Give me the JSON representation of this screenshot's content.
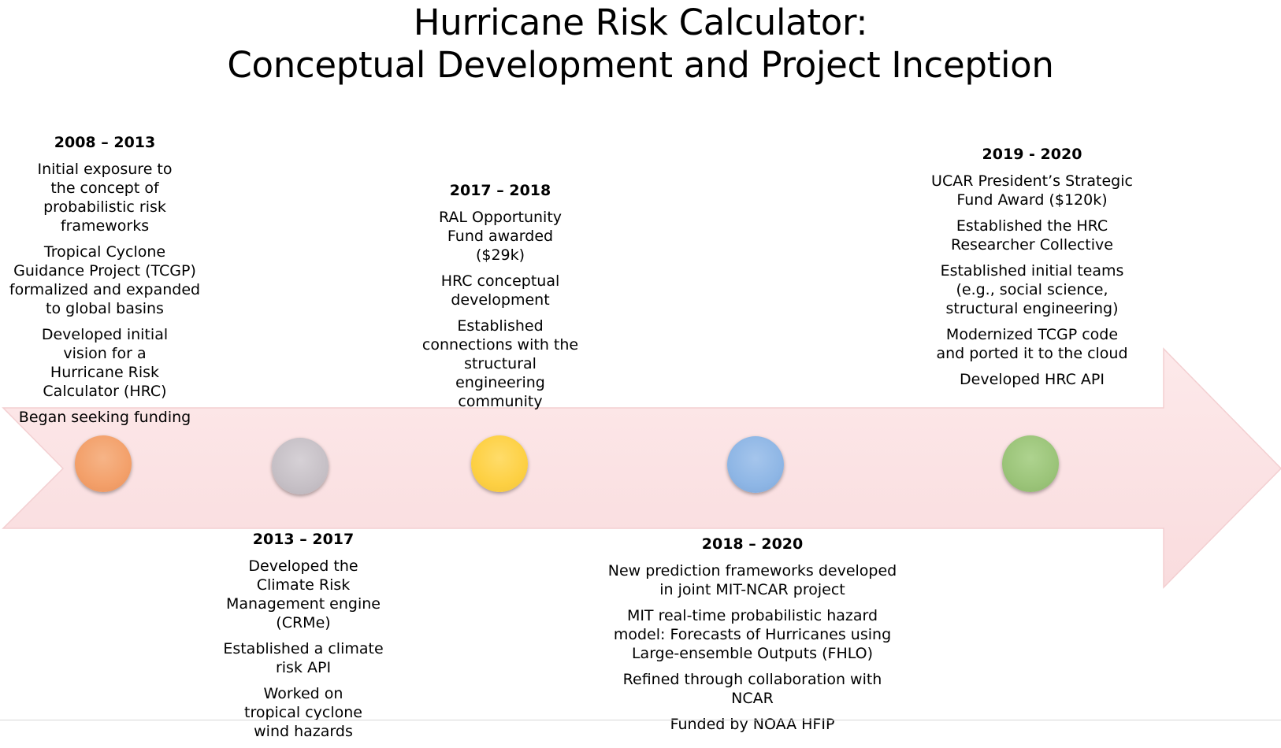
{
  "title": {
    "line1": "Hurricane Risk Calculator:",
    "line2": "Conceptual Development and Project Inception"
  },
  "colors": {
    "arrow_fill": "#fbe3e4",
    "arrow_stroke": "#f3cfd1",
    "dot_orange": "#f4a26e",
    "dot_gray": "#c9c3c9",
    "dot_yellow": "#fdd146",
    "dot_blue": "#8fb7e5",
    "dot_green": "#9cc57a"
  },
  "milestones": [
    {
      "period": "2008 – 2013",
      "items": [
        "Initial exposure to the concept of probabilistic risk frameworks",
        "Tropical Cyclone Guidance Project (TCGP) formalized and expanded to global basins",
        "Developed initial vision for a Hurricane Risk Calculator (HRC)",
        "Began seeking funding"
      ]
    },
    {
      "period": "2013 – 2017",
      "items": [
        "Developed the Climate Risk Management engine (CRMe)",
        "Established a climate risk API",
        "Worked on tropical cyclone wind hazards"
      ]
    },
    {
      "period": "2017 – 2018",
      "items": [
        "RAL Opportunity Fund awarded ($29k)",
        "HRC conceptual development",
        "Established connections with the structural engineering community"
      ]
    },
    {
      "period": "2018 – 2020",
      "items": [
        "New prediction frameworks developed in joint MIT-NCAR project",
        "MIT real-time probabilistic hazard model: Forecasts of Hurricanes using Large-ensemble Outputs (FHLO)",
        "Refined through collaboration with NCAR",
        "Funded by NOAA HFIP"
      ]
    },
    {
      "period": "2019 - 2020",
      "items": [
        "UCAR President’s Strategic Fund Award ($120k)",
        "Established the HRC Researcher Collective",
        "Established initial teams (e.g., social science, structural engineering)",
        "Modernized TCGP code and ported it to the cloud",
        "Developed HRC API"
      ]
    }
  ]
}
